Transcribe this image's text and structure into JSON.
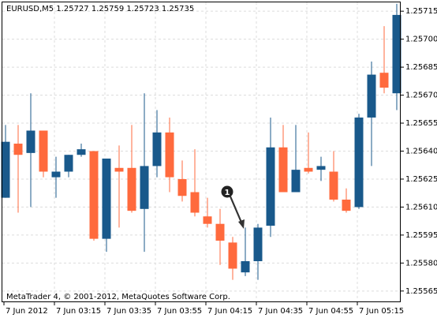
{
  "chart_data": {
    "type": "candlestick",
    "title": "EURUSD,M5  1.25727 1.25759 1.25723 1.25735",
    "footer": "MetaTrader 4, © 2001-2012, MetaQuotes Software Corp.",
    "annotation": "1",
    "categories": [
      "7 Jun 2012",
      null,
      null,
      null,
      "7 Jun 03:15",
      null,
      null,
      null,
      "7 Jun 03:35",
      null,
      null,
      null,
      "7 Jun 03:55",
      null,
      null,
      null,
      "7 Jun 04:15",
      null,
      null,
      null,
      "7 Jun 04:35",
      null,
      null,
      null,
      "7 Jun 04:55",
      null,
      null,
      null,
      "7 Jun 05:15",
      null,
      null,
      null
    ],
    "open": [
      1.25615,
      1.25644,
      1.25639,
      1.25651,
      1.25626,
      1.25629,
      1.25638,
      1.2564,
      1.25593,
      1.25631,
      1.25631,
      1.25609,
      1.25632,
      1.2565,
      1.25625,
      1.25618,
      1.25605,
      1.25601,
      1.25591,
      1.25575,
      1.25581,
      1.256,
      1.25642,
      1.25618,
      1.25631,
      1.2563,
      1.25629,
      1.25614,
      1.2561,
      1.25658,
      1.25682,
      1.25671
    ],
    "high": [
      1.25654,
      1.25654,
      1.25671,
      1.25651,
      1.25637,
      1.25638,
      1.25644,
      1.2564,
      1.25636,
      1.25643,
      1.25654,
      1.25671,
      1.25662,
      1.25658,
      1.25635,
      1.25641,
      1.25615,
      1.25609,
      1.25594,
      1.25599,
      1.25601,
      1.25658,
      1.25654,
      1.25654,
      1.2565,
      1.25637,
      1.2564,
      1.2562,
      1.2566,
      1.25688,
      1.25707,
      1.25719
    ],
    "low": [
      1.25615,
      1.25607,
      1.2561,
      1.25626,
      1.25615,
      1.25626,
      1.25637,
      1.25592,
      1.25586,
      1.25599,
      1.25607,
      1.25586,
      1.25626,
      1.25618,
      1.25613,
      1.25605,
      1.25599,
      1.25579,
      1.25571,
      1.25573,
      1.25571,
      1.25594,
      1.25618,
      1.25618,
      1.25628,
      1.25624,
      1.25613,
      1.25607,
      1.25609,
      1.25632,
      1.25671,
      1.25662
    ],
    "close": [
      1.25645,
      1.25638,
      1.25651,
      1.25629,
      1.25629,
      1.25638,
      1.25641,
      1.25593,
      1.25636,
      1.25629,
      1.25608,
      1.25632,
      1.2565,
      1.25626,
      1.25616,
      1.25607,
      1.25601,
      1.25592,
      1.25577,
      1.25581,
      1.25599,
      1.25642,
      1.25618,
      1.2563,
      1.25629,
      1.25632,
      1.25614,
      1.25608,
      1.25658,
      1.25681,
      1.25674,
      1.25713
    ],
    "up_color": "#19598b",
    "down_color": "#ff6a3d",
    "ylim": [
      1.25559,
      1.25721
    ],
    "yticks": [
      1.25715,
      {
        "value": 1.257,
        "label": "1.25700"
      },
      1.25685,
      {
        "value": 1.2567,
        "label": "1.25670"
      },
      1.25655,
      {
        "value": 1.2564,
        "label": "1.25640"
      },
      1.25625,
      {
        "value": 1.2561,
        "label": "1.25610"
      },
      1.25595,
      {
        "value": 1.2558,
        "label": "1.25580"
      },
      1.25565
    ],
    "grid": true
  }
}
